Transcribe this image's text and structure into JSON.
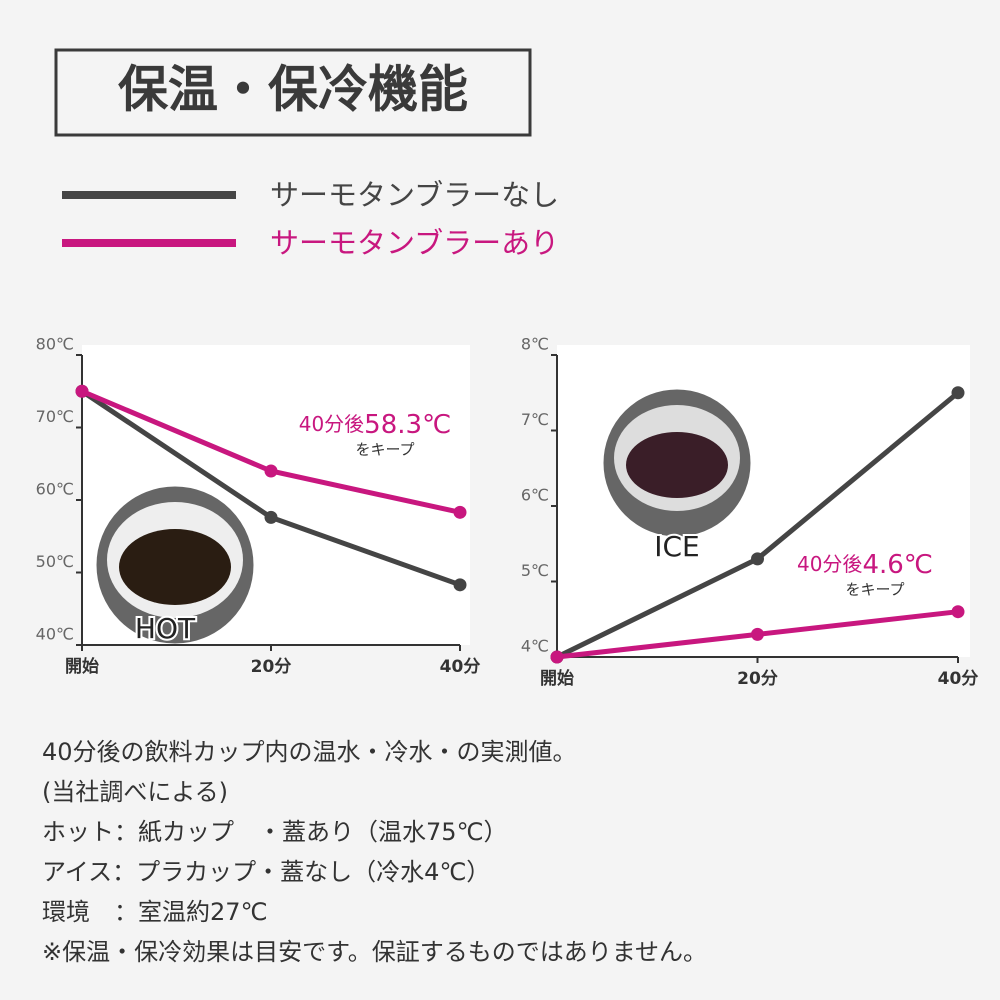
{
  "title": "保温・保冷機能",
  "notes": [
    "40分後の飲料カップ内の温水・冷水・の実測値。",
    "(当社調べによる)",
    "ホット：紙カップ　・蓋あり（温水75℃）",
    "アイス：プラカップ・蓋なし（冷水4℃）",
    "環境　：室温約27℃",
    "※保温・保冷効果は目安です。保証するものではありません。"
  ],
  "chart_data": [
    {
      "type": "line",
      "image_label": "HOT",
      "categories": [
        "開始",
        "20分",
        "40分"
      ],
      "series": [
        {
          "name": "サーモタンブラーなし",
          "color": "#454545",
          "values": [
            75,
            57.6,
            48.3
          ]
        },
        {
          "name": "サーモタンブラーあり",
          "color": "#c8177f",
          "values": [
            75,
            64,
            58.3
          ]
        }
      ],
      "ylim": [
        40,
        80
      ],
      "yticks": [
        {
          "value": 40,
          "label": "40℃"
        },
        {
          "value": 50,
          "label": "50℃"
        },
        {
          "value": 60,
          "label": "60℃"
        },
        {
          "value": 70,
          "label": "70℃"
        },
        {
          "value": 80,
          "label": "80℃"
        }
      ],
      "annotation": {
        "prefix": "40分後",
        "value": "58.3℃",
        "suffix": "をキープ"
      }
    },
    {
      "type": "line",
      "image_label": "ICE",
      "categories": [
        "開始",
        "20分",
        "40分"
      ],
      "series": [
        {
          "name": "サーモタンブラーなし",
          "color": "#454545",
          "values": [
            4,
            5.3,
            7.5
          ]
        },
        {
          "name": "サーモタンブラーあり",
          "color": "#c8177f",
          "values": [
            4,
            4.3,
            4.6
          ]
        }
      ],
      "ylim": [
        4,
        8
      ],
      "yticks": [
        {
          "value": 4,
          "label": "4℃"
        },
        {
          "value": 5,
          "label": "5℃"
        },
        {
          "value": 6,
          "label": "6℃"
        },
        {
          "value": 7,
          "label": "7℃"
        },
        {
          "value": 8,
          "label": "8℃"
        }
      ],
      "annotation": {
        "prefix": "40分後",
        "value": "4.6℃",
        "suffix": "をキープ"
      }
    }
  ]
}
